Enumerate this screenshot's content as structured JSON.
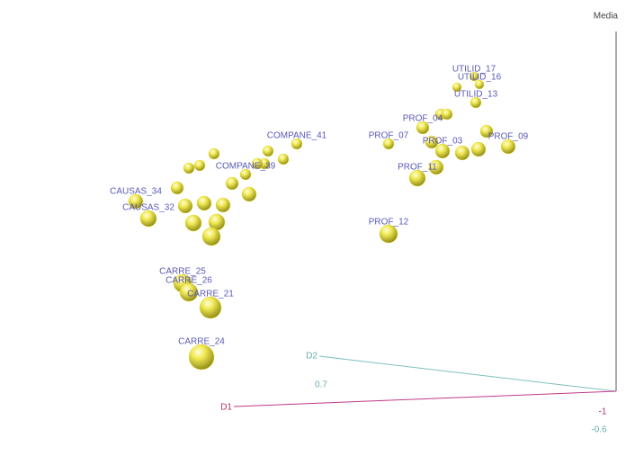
{
  "chart_data": {
    "type": "scatter3d",
    "axis_names": {
      "vertical": "Media",
      "d2": "D2",
      "d1": "D1"
    },
    "d2ticks": [
      0.7,
      -0.6
    ],
    "d1ticks": [
      -1
    ],
    "xlim": [
      0,
      7.06
    ],
    "ylim": [
      0,
      5.07
    ],
    "color": "#e6df3a",
    "label_color": "#5a5ab8",
    "labels": [
      "UTILID_17",
      "UTILID_16",
      null,
      "UTILID_13",
      null,
      null,
      "PROF_04",
      null,
      "PROF_07",
      null,
      "PROF_09",
      "PROF_03",
      null,
      null,
      null,
      "PROF_11",
      "PROF_12",
      "COMPANE_41",
      null,
      null,
      null,
      null,
      "COMPANE_39",
      null,
      null,
      null,
      null,
      null,
      null,
      "CAUSAS_34",
      null,
      null,
      null,
      "CAUSAS_32",
      null,
      null,
      null,
      "CARRE_25",
      "CARRE_26",
      "CARRE_21",
      "CARRE_24"
    ],
    "x": [
      5.27,
      5.33,
      5.08,
      5.29,
      4.9,
      4.97,
      4.7,
      5.41,
      4.32,
      4.8,
      5.65,
      4.92,
      5.14,
      5.32,
      4.85,
      4.64,
      4.32,
      3.3,
      2.98,
      3.15,
      2.94,
      2.86,
      2.73,
      2.38,
      2.22,
      2.1,
      2.58,
      2.77,
      1.97,
      1.51,
      2.06,
      2.27,
      2.48,
      1.65,
      2.15,
      2.41,
      2.35,
      2.03,
      2.1,
      2.34,
      2.24
    ],
    "y": [
      4.22,
      4.13,
      4.1,
      3.93,
      3.8,
      3.8,
      3.65,
      3.61,
      3.47,
      3.49,
      3.44,
      3.39,
      3.37,
      3.41,
      3.21,
      3.09,
      2.47,
      3.47,
      3.39,
      3.3,
      3.25,
      3.25,
      3.13,
      3.36,
      3.23,
      3.2,
      3.03,
      2.91,
      2.98,
      2.83,
      2.78,
      2.81,
      2.79,
      2.64,
      2.59,
      2.6,
      2.44,
      1.92,
      1.82,
      1.65,
      1.1
    ],
    "sizes": [
      5,
      5,
      5,
      6,
      6,
      6,
      7,
      7,
      6,
      7,
      8,
      8,
      8,
      8,
      8,
      9,
      10,
      6,
      6,
      6,
      6,
      6,
      6,
      6,
      6,
      6,
      7,
      8,
      7,
      8,
      8,
      8,
      8,
      9,
      9,
      9,
      10,
      10,
      10,
      12,
      14
    ]
  }
}
